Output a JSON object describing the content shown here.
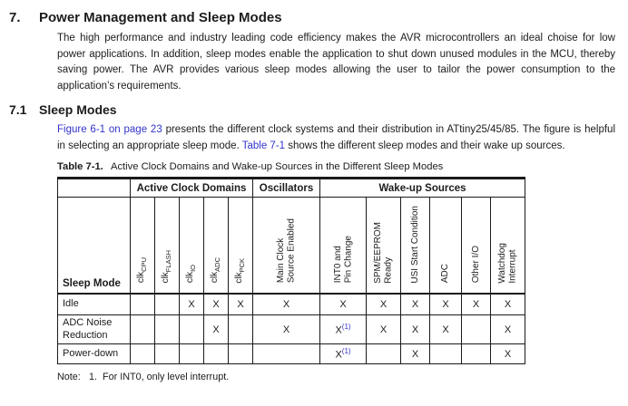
{
  "colors": {
    "link_blue": "#3333CC",
    "text": "#1c1c1c",
    "border": "#1a1a1a"
  },
  "section": {
    "number": "7.",
    "title": "Power Management and Sleep Modes",
    "intro_paragraph": "The high performance and industry leading code efficiency makes the AVR microcontrollers an ideal choise for low power applications. In addition, sleep modes enable the application to shut down unused modules in the MCU, thereby saving power. The AVR provides various sleep modes allowing the user to tailor the power consumption to the application’s requirements."
  },
  "subsection": {
    "number": "7.1",
    "title": "Sleep Modes",
    "paragraph": {
      "link_figure": "Figure 6-1 on page 23",
      "text_after_figure": " presents the different clock systems and their distribution in ATtiny25/45/85. The figure is helpful in selecting an appropriate sleep mode. ",
      "link_table": "Table 7-1",
      "text_after_table": " shows the different sleep modes and their wake up sources."
    }
  },
  "table": {
    "caption_label": "Table 7-1.",
    "caption_text": "Active Clock Domains and Wake-up Sources in the Different Sleep Modes",
    "first_col_header": "Sleep Mode",
    "groups": {
      "active_clock_domains": "Active Clock Domains",
      "oscillators": "Oscillators",
      "wakeup_sources": "Wake-up Sources"
    },
    "columns": [
      {
        "id": "clk-cpu",
        "label": "clk",
        "sub": "CPU"
      },
      {
        "id": "clk-flash",
        "label": "clk",
        "sub": "FLASH"
      },
      {
        "id": "clk-io",
        "label": "clk",
        "sub": "IO"
      },
      {
        "id": "clk-adc",
        "label": "clk",
        "sub": "ADC"
      },
      {
        "id": "clk-pck",
        "label": "clk",
        "sub": "PCK"
      },
      {
        "id": "main-clock-source-enabled",
        "label": "Main Clock\nSource Enabled"
      },
      {
        "id": "int0-and-pin-change",
        "label": "INT0 and\nPin Change"
      },
      {
        "id": "spm-eeprom-ready",
        "label": "SPM/EEPROM\nReady"
      },
      {
        "id": "usi-start-condition",
        "label": "USI Start Condition"
      },
      {
        "id": "adc",
        "label": "ADC"
      },
      {
        "id": "other-io",
        "label": "Other I/O"
      },
      {
        "id": "watchdog-interrupt",
        "label": "Watchdog\nInterrupt"
      }
    ],
    "rows": [
      {
        "id": "idle",
        "mode": "Idle",
        "marks": [
          "",
          "",
          "X",
          "X",
          "X",
          "X",
          "X",
          "X",
          "X",
          "X",
          "X",
          "X"
        ]
      },
      {
        "id": "adc-noise-reduction",
        "mode": "ADC Noise Reduction",
        "marks": [
          "",
          "",
          "",
          "X",
          "",
          "X",
          "X(1)",
          "X",
          "X",
          "X",
          "",
          "X"
        ]
      },
      {
        "id": "power-down",
        "mode": "Power-down",
        "marks": [
          "",
          "",
          "",
          "",
          "",
          "",
          "X(1)",
          "",
          "X",
          "",
          "",
          "X"
        ]
      }
    ]
  },
  "note": {
    "label": "Note:",
    "number": "1.",
    "text": "For INT0, only level interrupt."
  }
}
